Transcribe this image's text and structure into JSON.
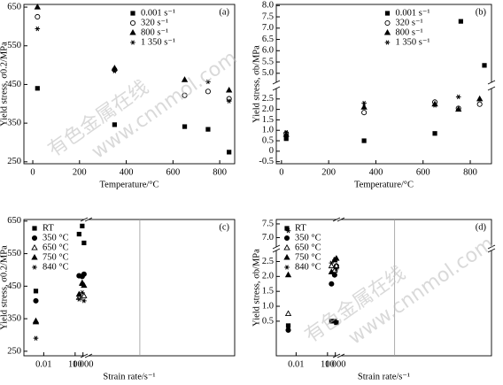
{
  "chart_data": [
    {
      "type": "scatter",
      "panel_label": "(a)",
      "xlabel": "Temperature/°C",
      "ylabel": "Yield stress, σ0.2/MPa",
      "legend": "upper right",
      "xlim": [
        -38,
        864
      ],
      "xticks": [
        0,
        200,
        400,
        600,
        800
      ],
      "ylim": [
        245,
        657
      ],
      "yticks": [
        250,
        350,
        450,
        550,
        650
      ],
      "series": [
        {
          "name": "0.001 s⁻¹",
          "marker": "square",
          "x": [
            20,
            350,
            650,
            750,
            840
          ],
          "values": [
            440,
            346,
            341,
            334,
            275
          ]
        },
        {
          "name": "320 s⁻¹",
          "marker": "circle-open",
          "x": [
            20,
            350,
            650,
            750,
            840
          ],
          "values": [
            625,
            488,
            422,
            432,
            413
          ]
        },
        {
          "name": "800 s⁻¹",
          "marker": "triangle",
          "x": [
            20,
            350,
            650,
            840
          ],
          "values": [
            650,
            492,
            462,
            435
          ]
        },
        {
          "name": "1 350 s⁻¹",
          "marker": "star",
          "x": [
            20,
            350,
            750,
            840
          ],
          "values": [
            594,
            485,
            457,
            407
          ]
        }
      ]
    },
    {
      "type": "scatter",
      "panel_label": "(b)",
      "xlabel": "Temperature/°C",
      "ylabel": "Yield stress, σb/MPa",
      "legend": "upper right",
      "xlim": [
        -22,
        890
      ],
      "xticks": [
        0,
        200,
        400,
        600,
        800
      ],
      "y_segments": [
        {
          "ylim": [
            -0.6,
            3.0
          ],
          "yticks": [
            -0.5,
            0,
            0.5,
            {
              "value": 1,
              "label": "1.0"
            },
            1.5,
            {
              "value": 2,
              "label": "2.0"
            },
            2.5
          ]
        },
        {
          "ylim": [
            4.6,
            8.05
          ],
          "yticks": [
            {
              "value": 5,
              "label": "5.0"
            },
            5.5,
            {
              "value": 6,
              "label": "6.0"
            },
            6.5,
            {
              "value": 7,
              "label": "7.0"
            },
            7.5,
            {
              "value": 8,
              "label": "8.0"
            }
          ]
        }
      ],
      "series": [
        {
          "name": "0.001 s⁻¹",
          "marker": "square",
          "x": [
            20,
            350,
            650,
            760,
            860
          ],
          "values": [
            0.6,
            0.5,
            0.85,
            7.3,
            5.35
          ]
        },
        {
          "name": "320 s⁻¹",
          "marker": "circle-open",
          "x": [
            20,
            350,
            650,
            750,
            840
          ],
          "values": [
            0.85,
            1.85,
            2.35,
            2.05,
            2.25
          ]
        },
        {
          "name": "800 s⁻¹",
          "marker": "triangle",
          "x": [
            20,
            350,
            650,
            750,
            840
          ],
          "values": [
            0.8,
            2.1,
            2.25,
            2.0,
            2.5
          ]
        },
        {
          "name": "1 350 s⁻¹",
          "marker": "star",
          "x": [
            20,
            350,
            650,
            750
          ],
          "values": [
            0.9,
            2.3,
            2.2,
            2.6
          ]
        }
      ]
    },
    {
      "type": "scatter",
      "panel_label": "(c)",
      "xlabel": "Strain rate/s⁻¹",
      "ylabel": "Yield stress, σ0.2/MPa",
      "legend": "upper left",
      "xscale": "log",
      "x_segments": [
        {
          "xlim": [
            3e-05,
            1400
          ],
          "xticks": [
            0.01,
            100
          ]
        },
        {
          "xlim": [
            112,
            1950
          ],
          "xticks": [
            {
              "value": 1000,
              "label": "1 000"
            }
          ]
        }
      ],
      "ylim": [
        236,
        655
      ],
      "yticks": [
        250,
        350,
        450,
        550,
        650
      ],
      "x": [
        0.001,
        320,
        800,
        1350
      ],
      "series": [
        {
          "name": "RT",
          "marker": "square",
          "values": [
            435,
            610,
            635,
            583
          ]
        },
        {
          "name": "350 °C",
          "marker": "circle",
          "values": [
            405,
            482,
            480,
            487
          ]
        },
        {
          "name": "650 °C",
          "marker": "triangle-open",
          "values": [
            343,
            415,
            460,
            420
          ]
        },
        {
          "name": "750 °C",
          "marker": "triangle",
          "values": [
            340,
            425,
            458,
            452
          ]
        },
        {
          "name": "840 °C",
          "marker": "star",
          "values": [
            290,
            410,
            430,
            405
          ]
        }
      ]
    },
    {
      "type": "scatter",
      "panel_label": "(d)",
      "xlabel": "Strain rate/s⁻¹",
      "ylabel": "Yield stress, σb/MPa",
      "legend": "upper left",
      "xscale": "log",
      "x_segments": [
        {
          "xlim": [
            3e-05,
            1400
          ],
          "xticks": [
            0.01,
            100
          ]
        },
        {
          "xlim": [
            112,
            1950
          ],
          "xticks": [
            {
              "value": 1000,
              "label": "1 000"
            }
          ]
        }
      ],
      "y_segments": [
        {
          "ylim": [
            -0.66,
            2.87
          ],
          "yticks": [
            0.5,
            {
              "value": 1,
              "label": "1.0"
            },
            1.5,
            {
              "value": 2,
              "label": "2.0"
            },
            2.5
          ]
        },
        {
          "ylim": [
            6.66,
            7.66
          ],
          "yticks": [
            {
              "value": 7,
              "label": "7.0"
            },
            7.5
          ]
        }
      ],
      "x": [
        0.001,
        320,
        800,
        1350
      ],
      "series": [
        {
          "name": "RT",
          "marker": "square",
          "values": [
            0.35,
            0.5,
            0.5,
            0.45
          ]
        },
        {
          "name": "350 °C",
          "marker": "circle",
          "values": [
            0.2,
            1.75,
            2.05,
            2.35
          ]
        },
        {
          "name": "650 °C",
          "marker": "triangle-open",
          "values": [
            0.75,
            2.35,
            2.2,
            2.35
          ]
        },
        {
          "name": "750 °C",
          "marker": "triangle",
          "values": [
            2.05,
            2.15,
            2.55,
            2.6
          ]
        },
        {
          "name": "840 °C",
          "marker": "star",
          "values": [
            7.25,
            2.45,
            2.55,
            2.25
          ]
        }
      ]
    }
  ],
  "watermark_cn": "有色金属在线",
  "watermark_url": "www.cnnmol.com"
}
